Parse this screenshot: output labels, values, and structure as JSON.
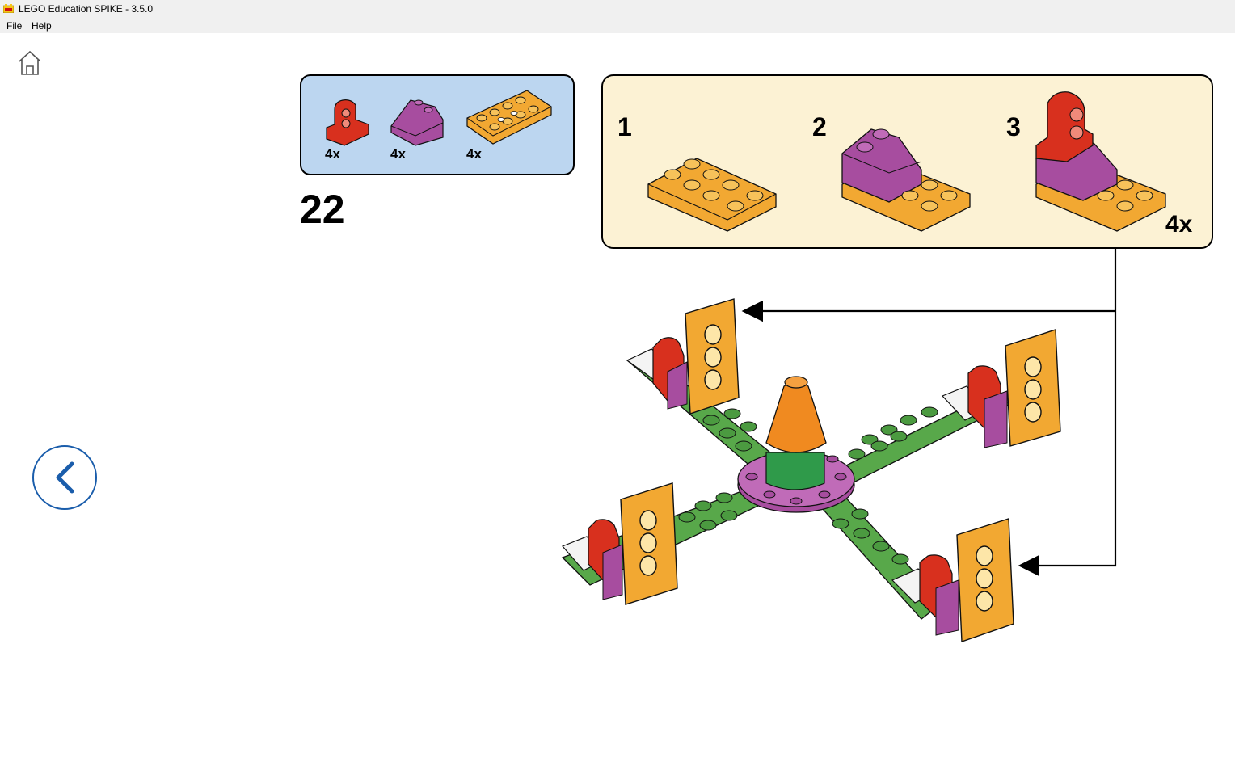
{
  "window": {
    "title": "LEGO Education SPIKE - 3.5.0"
  },
  "menu": {
    "file": "File",
    "help": "Help"
  },
  "nav": {
    "home_icon": "home-icon",
    "back_icon": "chevron-left-icon"
  },
  "instruction": {
    "step_number": "22",
    "parts": [
      {
        "name": "red-axle-connector",
        "qty": "4x"
      },
      {
        "name": "purple-slope-brick",
        "qty": "4x"
      },
      {
        "name": "yellow-orange-plate-2x4",
        "qty": "4x"
      }
    ],
    "sub_steps": [
      {
        "number": "1"
      },
      {
        "number": "2"
      },
      {
        "number": "3"
      }
    ],
    "sub_assembly_multiplier": "4x"
  },
  "colors": {
    "parts_panel_bg": "#bcd6f0",
    "substeps_panel_bg": "#fcf2d4",
    "accent_blue": "#1a5dab",
    "brick_orange": "#f2a832",
    "brick_red": "#d8301e",
    "brick_purple": "#a74d9f",
    "brick_green": "#58a84a"
  }
}
